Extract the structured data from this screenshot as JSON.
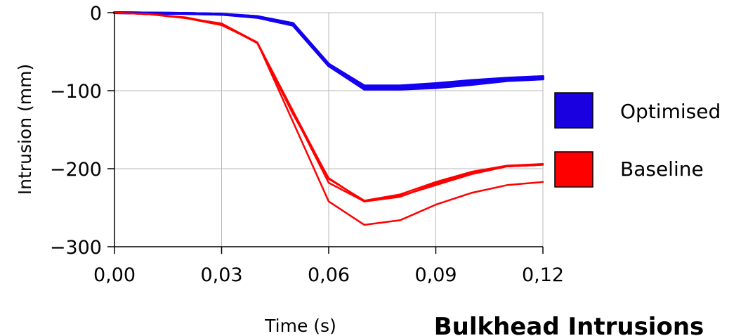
{
  "chart_data": {
    "type": "line",
    "title": "Bulkhead Intrusions",
    "xlabel": "Time (s)",
    "ylabel": "Intrusion (mm)",
    "xlim": [
      0,
      0.12
    ],
    "ylim": [
      -300,
      0
    ],
    "x_ticks": [
      0,
      0.03,
      0.06,
      0.09,
      0.12
    ],
    "x_tick_labels": [
      "0,00",
      "0,03",
      "0,06",
      "0,09",
      "0,12"
    ],
    "y_ticks": [
      0,
      -100,
      -200,
      -300
    ],
    "y_tick_labels": [
      "0",
      "−100",
      "−200",
      "−300"
    ],
    "grid": true,
    "legend_position": "right",
    "legend": [
      {
        "label": "Optimised",
        "color": "#1a00e0"
      },
      {
        "label": "Baseline",
        "color": "#ff0000"
      }
    ],
    "series": [
      {
        "group": "Optimised",
        "color": "#1400f0",
        "x": [
          0,
          0.01,
          0.02,
          0.03,
          0.04,
          0.05,
          0.06,
          0.07,
          0.08,
          0.09,
          0.1,
          0.11,
          0.12
        ],
        "y": [
          0,
          -0.5,
          -1,
          -2,
          -5,
          -15,
          -67,
          -97,
          -97,
          -94,
          -90,
          -86,
          -84
        ]
      },
      {
        "group": "Optimised",
        "color": "#1400f0",
        "x": [
          0,
          0.01,
          0.02,
          0.03,
          0.04,
          0.05,
          0.06,
          0.07,
          0.08,
          0.09,
          0.1,
          0.11,
          0.12
        ],
        "y": [
          0,
          -0.5,
          -1,
          -2,
          -5,
          -14,
          -66,
          -94,
          -94,
          -91,
          -87,
          -84,
          -82
        ]
      },
      {
        "group": "Optimised",
        "color": "#1400f0",
        "x": [
          0,
          0.01,
          0.02,
          0.03,
          0.04,
          0.05,
          0.06,
          0.07,
          0.08,
          0.09,
          0.1,
          0.11,
          0.12
        ],
        "y": [
          0,
          -0.5,
          -1,
          -2,
          -6,
          -16,
          -68,
          -98,
          -98,
          -96,
          -92,
          -87,
          -85
        ]
      },
      {
        "group": "Baseline",
        "color": "#ff0000",
        "x": [
          0,
          0.01,
          0.02,
          0.03,
          0.04,
          0.05,
          0.06,
          0.07,
          0.08,
          0.09,
          0.1,
          0.11,
          0.12
        ],
        "y": [
          0,
          -2,
          -7,
          -16,
          -38,
          -140,
          -242,
          -272,
          -266,
          -246,
          -231,
          -221,
          -217
        ]
      },
      {
        "group": "Baseline",
        "color": "#ff0000",
        "x": [
          0,
          0.01,
          0.02,
          0.03,
          0.04,
          0.05,
          0.06,
          0.07,
          0.08,
          0.09,
          0.1,
          0.11,
          0.12
        ],
        "y": [
          0,
          -2,
          -7,
          -14,
          -39,
          -130,
          -212,
          -242,
          -236,
          -219,
          -205,
          -197,
          -195
        ]
      },
      {
        "group": "Baseline",
        "color": "#ff0000",
        "x": [
          0,
          0.01,
          0.02,
          0.03,
          0.04,
          0.05,
          0.06,
          0.07,
          0.08,
          0.09,
          0.1,
          0.11,
          0.12
        ],
        "y": [
          0,
          -2,
          -6,
          -15,
          -39,
          -128,
          -218,
          -242,
          -235,
          -221,
          -207,
          -197,
          -195
        ]
      },
      {
        "group": "Baseline",
        "color": "#ff0000",
        "x": [
          0,
          0.01,
          0.02,
          0.03,
          0.04,
          0.05,
          0.06,
          0.07,
          0.08,
          0.09,
          0.1,
          0.11,
          0.12
        ],
        "y": [
          0,
          -2,
          -7,
          -14,
          -38,
          -126,
          -213,
          -241,
          -233,
          -217,
          -204,
          -196,
          -194
        ]
      }
    ]
  }
}
